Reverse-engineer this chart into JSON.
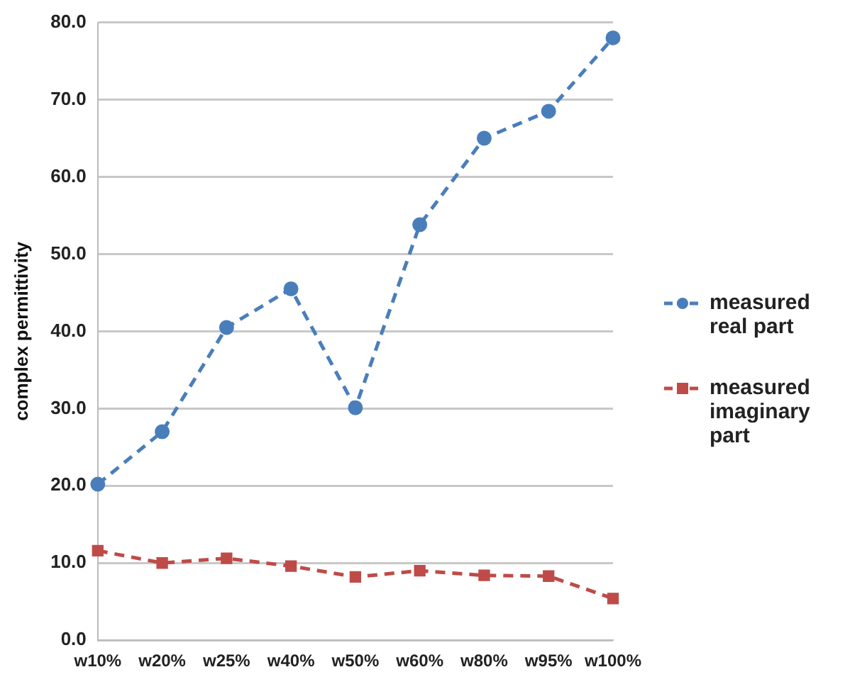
{
  "chart_data": {
    "type": "line",
    "ylabel": "complex permittivity",
    "categories": [
      "w10%",
      "w20%",
      "w25%",
      "w40%",
      "w50%",
      "w60%",
      "w80%",
      "w95%",
      "w100%"
    ],
    "series": [
      {
        "name": "measured real part",
        "color": "#4a7ebb",
        "marker": "circle",
        "values": [
          20.2,
          27.0,
          40.5,
          45.5,
          30.1,
          53.8,
          65.0,
          68.5,
          78.0
        ]
      },
      {
        "name": "measured imaginary part",
        "color": "#be4b48",
        "marker": "square",
        "values": [
          11.6,
          10.0,
          10.6,
          9.6,
          8.2,
          9.0,
          8.4,
          8.3,
          5.4
        ]
      }
    ],
    "ylim": [
      0,
      80
    ],
    "yticks": [
      {
        "value": 0,
        "label": "0.0"
      },
      {
        "value": 10,
        "label": "10.0"
      },
      {
        "value": 20,
        "label": "20.0"
      },
      {
        "value": 30,
        "label": "30.0"
      },
      {
        "value": 40,
        "label": "40.0"
      },
      {
        "value": 50,
        "label": "50.0"
      },
      {
        "value": 60,
        "label": "60.0"
      },
      {
        "value": 70,
        "label": "70.0"
      },
      {
        "value": 80,
        "label": "80.0"
      }
    ],
    "grid": "y",
    "legend": "right",
    "line_style": "dashed"
  }
}
